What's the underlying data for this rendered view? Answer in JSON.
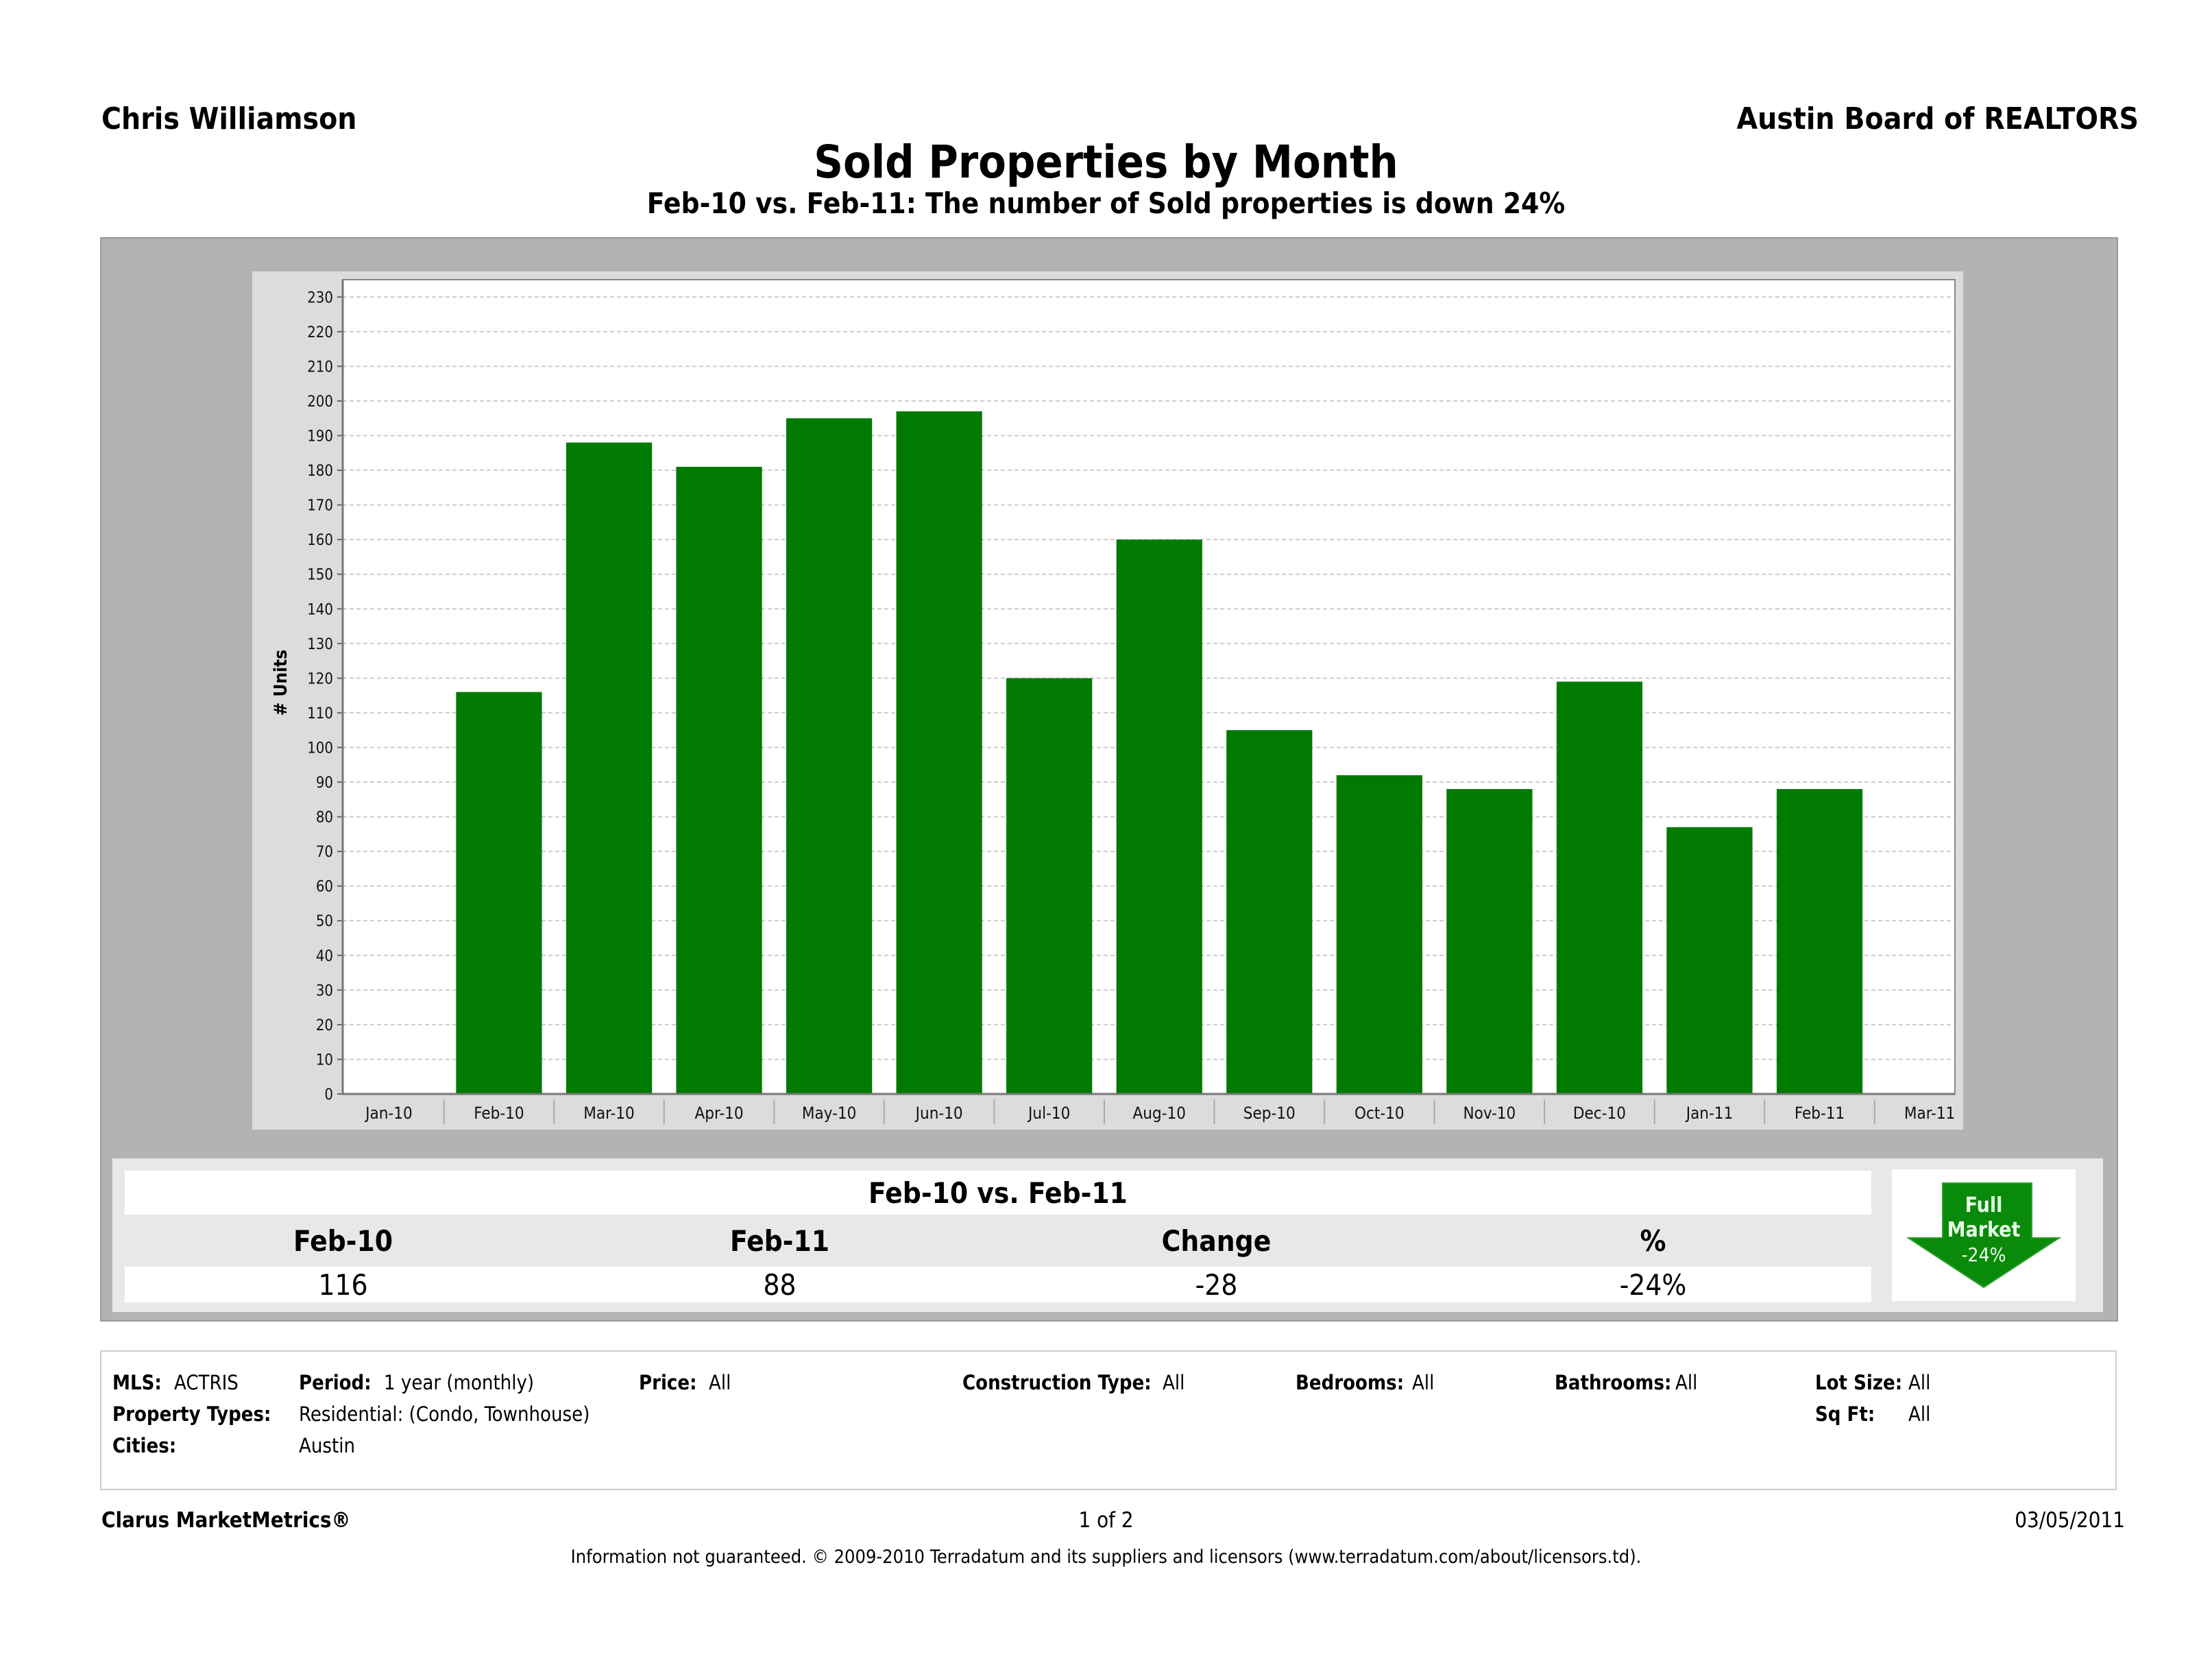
{
  "header": {
    "agent_name": "Chris Williamson",
    "board_name": "Austin Board of REALTORS",
    "title": "Sold Properties by Month",
    "subtitle": "Feb-10 vs. Feb-11: The number of Sold properties is down 24%"
  },
  "chart_data": {
    "type": "bar",
    "title": "Sold Properties by Month",
    "xlabel": "",
    "ylabel": "# Units",
    "categories": [
      "Jan-10",
      "Feb-10",
      "Mar-10",
      "Apr-10",
      "May-10",
      "Jun-10",
      "Jul-10",
      "Aug-10",
      "Sep-10",
      "Oct-10",
      "Nov-10",
      "Dec-10",
      "Jan-11",
      "Feb-11",
      "Mar-11"
    ],
    "values": [
      null,
      116,
      188,
      181,
      195,
      197,
      120,
      160,
      105,
      92,
      88,
      119,
      77,
      88,
      null
    ],
    "ylim": [
      0,
      235
    ],
    "yticks": [
      0,
      10,
      20,
      30,
      40,
      50,
      60,
      70,
      80,
      90,
      100,
      110,
      120,
      130,
      140,
      150,
      160,
      170,
      180,
      190,
      200,
      210,
      220,
      230
    ],
    "grid": true,
    "bar_color": "#007a00"
  },
  "summary": {
    "title": "Feb-10 vs. Feb-11",
    "headers": [
      "Feb-10",
      "Feb-11",
      "Change",
      "%"
    ],
    "values": [
      "116",
      "88",
      "-28",
      "-24%"
    ],
    "badge": {
      "line1": "Full",
      "line2": "Market",
      "line3": "-24%",
      "icon": "down-arrow-icon",
      "color": "#0a8a0a"
    }
  },
  "filters": {
    "mls_label": "MLS:",
    "mls_value": "ACTRIS",
    "period_label": "Period:",
    "period_value": "1 year (monthly)",
    "price_label": "Price:",
    "price_value": "All",
    "construction_label": "Construction Type:",
    "construction_value": "All",
    "bedrooms_label": "Bedrooms:",
    "bedrooms_value": "All",
    "bathrooms_label": "Bathrooms:",
    "bathrooms_value": "All",
    "lot_label": "Lot Size:",
    "lot_value": "All",
    "sqft_label": "Sq Ft:",
    "sqft_value": "All",
    "ptype_label": "Property Types:",
    "ptype_value": "Residential: (Condo, Townhouse)",
    "cities_label": "Cities:",
    "cities_value": "Austin"
  },
  "footer": {
    "brand": "Clarus MarketMetrics®",
    "page": "1 of 2",
    "date": "03/05/2011",
    "disclaimer": "Information not guaranteed.  © 2009-2010 Terradatum and its suppliers and licensors (www.terradatum.com/about/licensors.td)."
  }
}
